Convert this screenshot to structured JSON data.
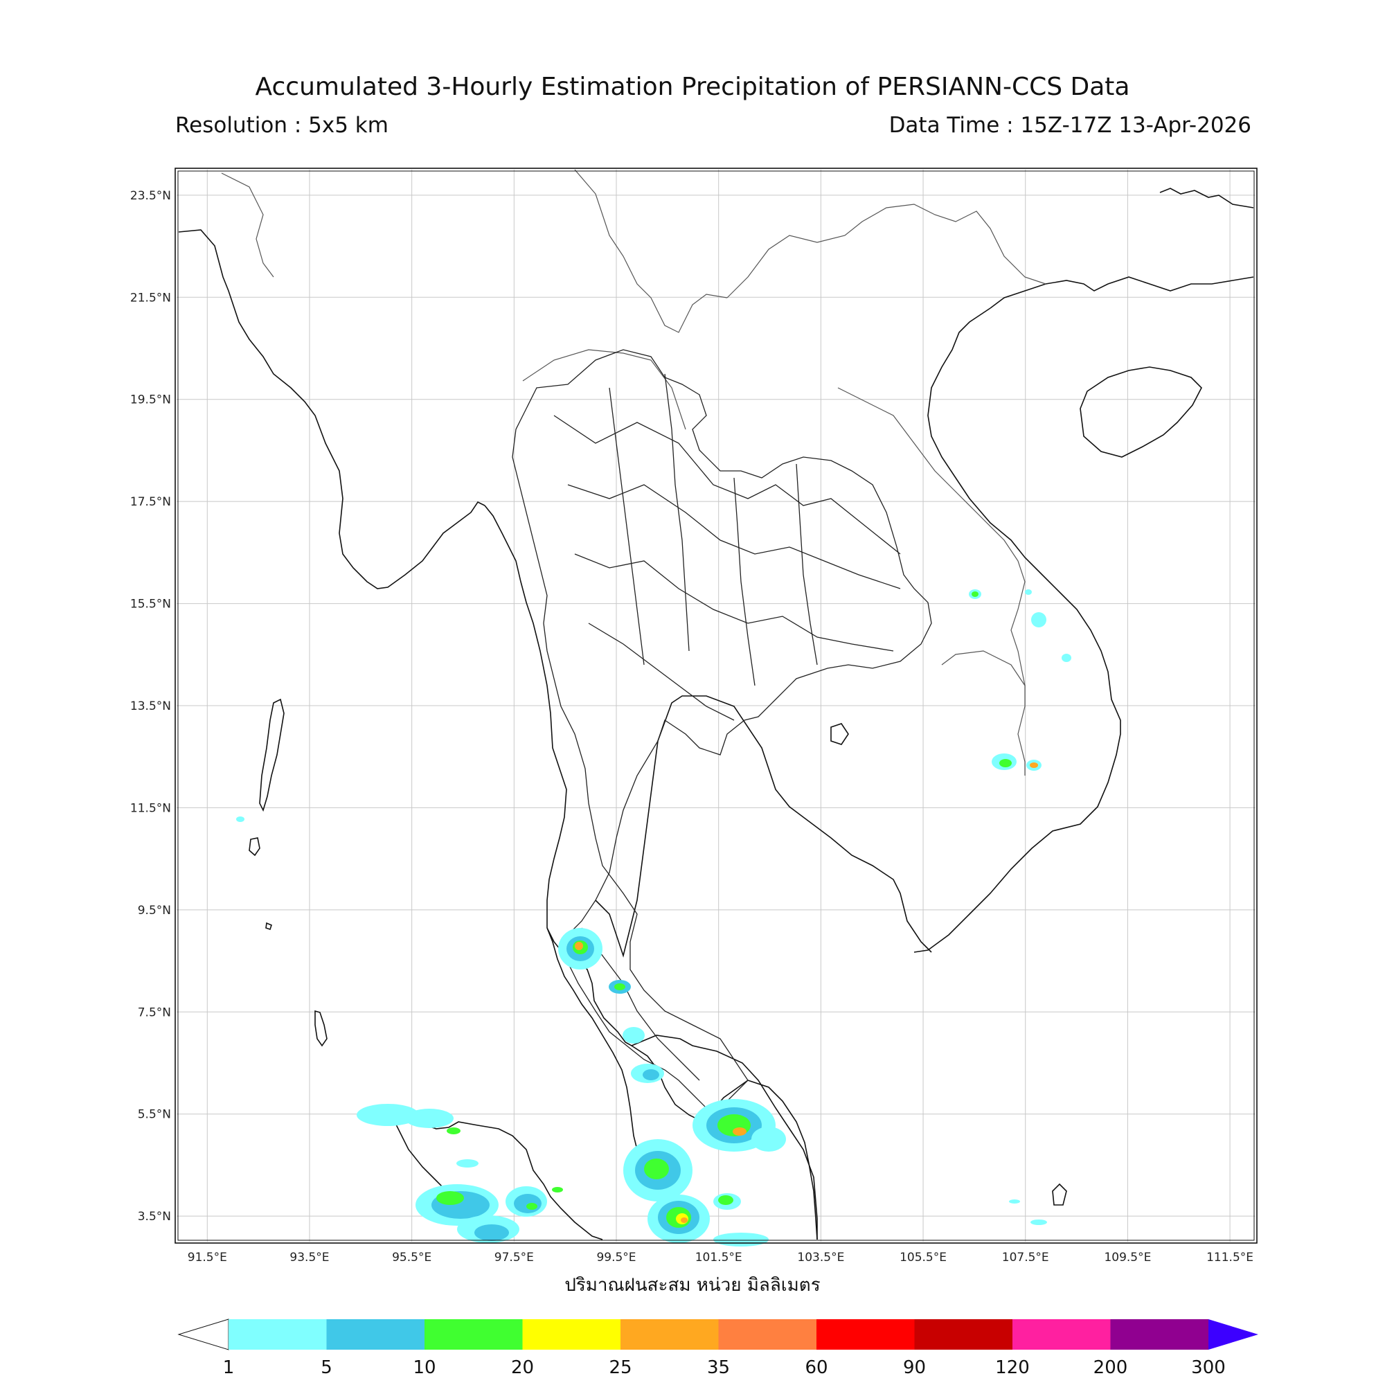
{
  "header": {
    "title": "Accumulated 3-Hourly Estimation Precipitation of PERSIANN-CCS Data",
    "resolution": "Resolution : 5x5 km",
    "data_time": "Data Time : 15Z-17Z 13-Apr-2026"
  },
  "map": {
    "lat_labels": [
      "23.5°N",
      "21.5°N",
      "19.5°N",
      "17.5°N",
      "15.5°N",
      "13.5°N",
      "11.5°N",
      "9.5°N",
      "7.5°N",
      "5.5°N",
      "3.5°N"
    ],
    "lon_labels": [
      "91.5°E",
      "93.5°E",
      "95.5°E",
      "97.5°E",
      "99.5°E",
      "101.5°E",
      "103.5°E",
      "105.5°E",
      "107.5°E",
      "109.5°E",
      "111.5°E"
    ],
    "lon_range": [
      90.9,
      112.0
    ],
    "lat_range": [
      3.0,
      24.0
    ],
    "grid": true
  },
  "colorbar": {
    "title": "ปริมาณฝนสะสม หน่วย มิลลิเมตร",
    "ticks": [
      "1",
      "5",
      "10",
      "20",
      "25",
      "35",
      "60",
      "90",
      "120",
      "200",
      "300"
    ],
    "colors": [
      "#80ffff",
      "#40c8e8",
      "#40ff30",
      "#ffff00",
      "#ffa820",
      "#ff8040",
      "#ff0000",
      "#c80000",
      "#ff20a0",
      "#900090"
    ],
    "over_color": "#3c00ff",
    "under_color": "#ffffff"
  }
}
